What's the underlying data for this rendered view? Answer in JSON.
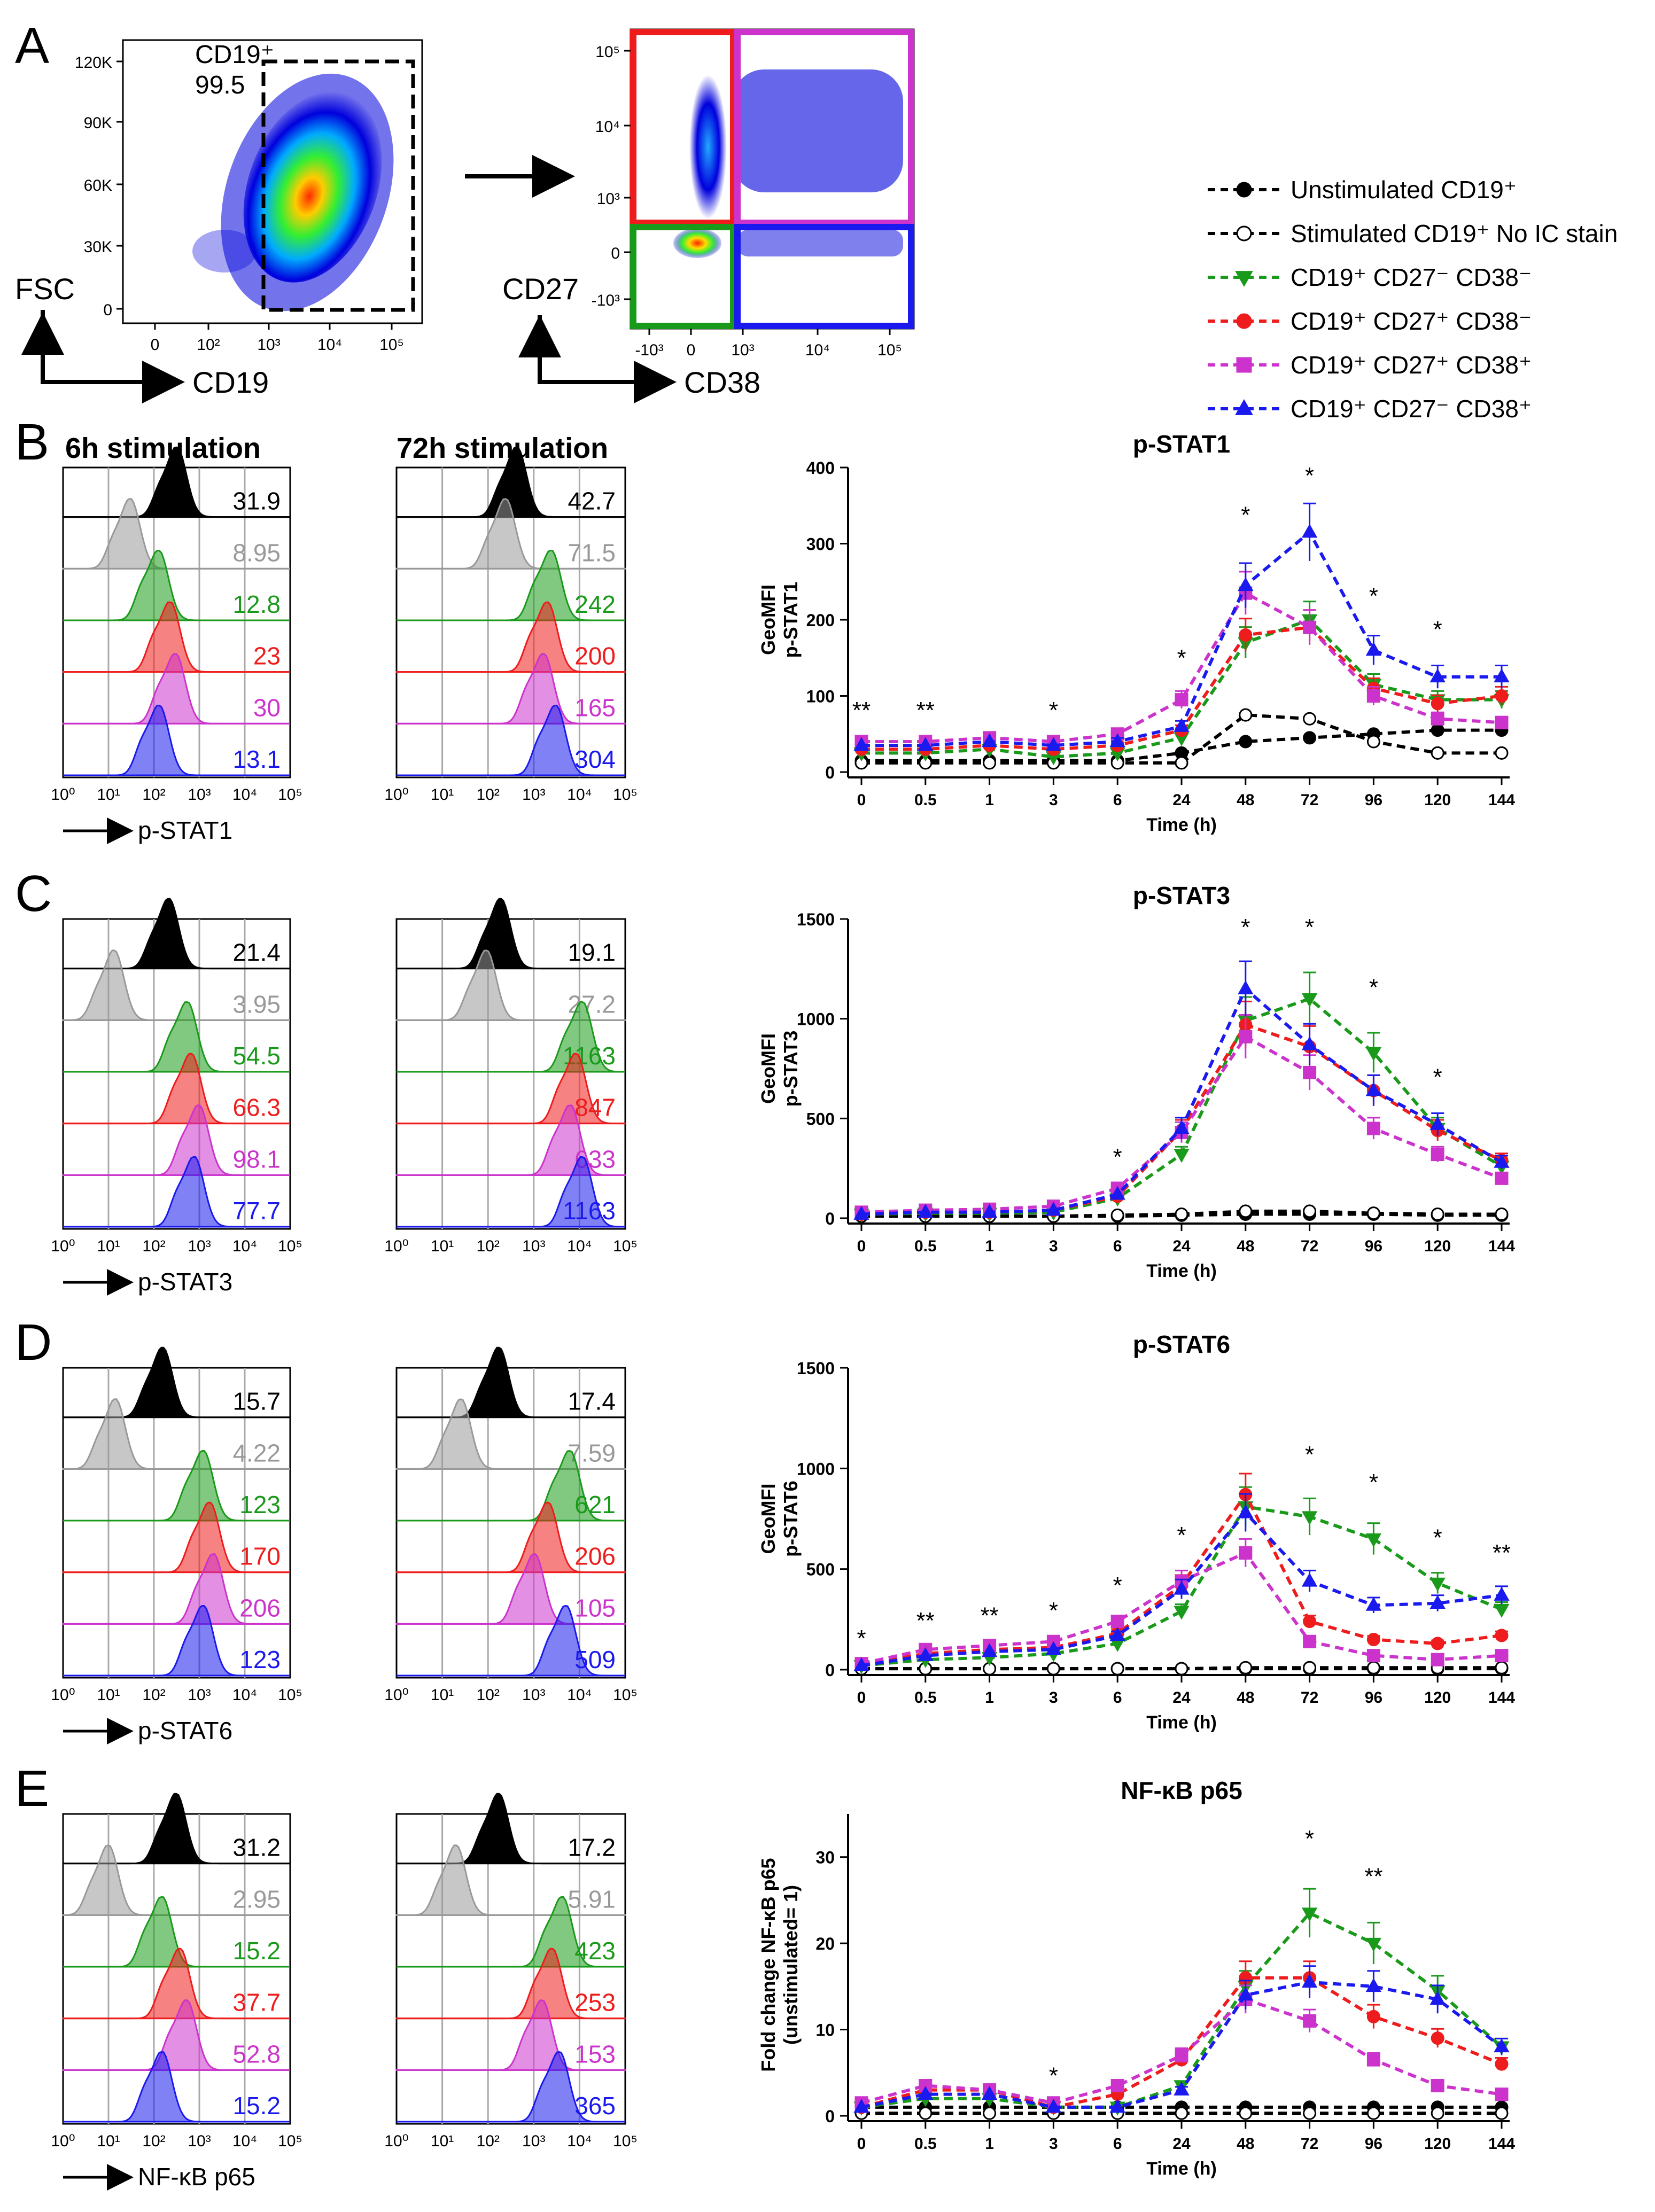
{
  "colors": {
    "black": "#000000",
    "gray": "#999999",
    "green": "#1a9a1a",
    "red": "#ee1c1c",
    "purple": "#cc33cc",
    "blue": "#1a1aee"
  },
  "legend": [
    {
      "label": "Unstimulated CD19⁺",
      "color": "#000000",
      "marker": "circle",
      "filled": true
    },
    {
      "label": "Stimulated CD19⁺ No IC stain",
      "color": "#000000",
      "marker": "circle",
      "filled": false
    },
    {
      "label": "CD19⁺ CD27⁻  CD38⁻",
      "color": "#1a9a1a",
      "marker": "triangle-down",
      "filled": true
    },
    {
      "label": "CD19⁺ CD27⁺ CD38⁻",
      "color": "#ee1c1c",
      "marker": "circle",
      "filled": true
    },
    {
      "label": "CD19⁺ CD27⁺ CD38⁺",
      "color": "#cc33cc",
      "marker": "square",
      "filled": true
    },
    {
      "label": "CD19⁺ CD27⁻  CD38⁺",
      "color": "#1a1aee",
      "marker": "triangle-up",
      "filled": true
    }
  ],
  "panelA": {
    "letter": "A",
    "dot1": {
      "gate_label": "CD19⁺",
      "gate_value": "99.5",
      "y_ticks": [
        "120K",
        "90K",
        "60K",
        "30K",
        "0"
      ],
      "x_ticks": [
        "0",
        "10²",
        "10³",
        "10⁴",
        "10⁵"
      ],
      "y_axis": "FSC",
      "x_axis": "CD19"
    },
    "dot2": {
      "y_ticks": [
        "10⁵",
        "10⁴",
        "10³",
        "0",
        "-10³"
      ],
      "x_ticks": [
        "-10³",
        "0",
        "10³",
        "10⁴",
        "10⁵"
      ],
      "y_axis": "CD27",
      "x_axis": "CD38"
    }
  },
  "histo_x_ticks": [
    "10⁰",
    "10¹",
    "10²",
    "10³",
    "10⁴",
    "10⁵"
  ],
  "histograms": [
    {
      "letter": "B",
      "col1_title": "6h stimulation",
      "col2_title": "72h stimulation",
      "marker": "p-STAT1",
      "values_6h": [
        "31.9",
        "8.95",
        "12.8",
        "23",
        "30",
        "13.1"
      ],
      "values_72h": [
        "42.7",
        "71.5",
        "242",
        "200",
        "165",
        "304"
      ]
    },
    {
      "letter": "C",
      "marker": "p-STAT3",
      "values_6h": [
        "21.4",
        "3.95",
        "54.5",
        "66.3",
        "98.1",
        "77.7"
      ],
      "values_72h": [
        "19.1",
        "27.2",
        "1163",
        "847",
        "633",
        "1163"
      ]
    },
    {
      "letter": "D",
      "marker": "p-STAT6",
      "values_6h": [
        "15.7",
        "4.22",
        "123",
        "170",
        "206",
        "123"
      ],
      "values_72h": [
        "17.4",
        "7.59",
        "621",
        "206",
        "105",
        "509"
      ]
    },
    {
      "letter": "E",
      "marker": "NF-κB p65",
      "values_6h": [
        "31.2",
        "2.95",
        "15.2",
        "37.7",
        "52.8",
        "15.2"
      ],
      "values_72h": [
        "17.2",
        "5.91",
        "423",
        "253",
        "153",
        "365"
      ]
    }
  ],
  "chart_data": [
    {
      "type": "line",
      "title": "p-STAT1",
      "xlabel": "Time (h)",
      "ylabel": "GeoMFI\np-STAT1",
      "categories": [
        "0",
        "0.5",
        "1",
        "3",
        "6",
        "24",
        "48",
        "72",
        "96",
        "120",
        "144"
      ],
      "ylim": [
        0,
        400
      ],
      "yticks": [
        "0",
        "100",
        "200",
        "300",
        "400"
      ],
      "significance": [
        {
          "x": "0",
          "label": "**"
        },
        {
          "x": "0.5",
          "label": "**"
        },
        {
          "x": "3",
          "label": "*"
        },
        {
          "x": "24",
          "label": "*"
        },
        {
          "x": "48",
          "label": "*"
        },
        {
          "x": "72",
          "label": "*"
        },
        {
          "x": "96",
          "label": "*"
        },
        {
          "x": "120",
          "label": "*"
        }
      ],
      "series": [
        {
          "name": "Unstimulated CD19⁺",
          "values": [
            15,
            15,
            15,
            15,
            15,
            25,
            40,
            45,
            50,
            55,
            55
          ]
        },
        {
          "name": "Stimulated CD19⁺ No IC stain",
          "values": [
            12,
            12,
            12,
            12,
            12,
            12,
            75,
            70,
            40,
            25,
            25
          ]
        },
        {
          "name": "CD19⁺ CD27⁻  CD38⁻",
          "values": [
            25,
            25,
            30,
            20,
            25,
            45,
            170,
            200,
            115,
            95,
            95
          ]
        },
        {
          "name": "CD19⁺ CD27⁺ CD38⁻",
          "values": [
            30,
            30,
            35,
            30,
            35,
            55,
            180,
            190,
            110,
            90,
            100
          ]
        },
        {
          "name": "CD19⁺ CD27⁺ CD38⁺",
          "values": [
            40,
            40,
            45,
            40,
            50,
            95,
            235,
            190,
            100,
            70,
            65
          ]
        },
        {
          "name": "CD19⁺ CD27⁻  CD38⁺",
          "values": [
            35,
            35,
            40,
            35,
            40,
            60,
            245,
            315,
            160,
            125,
            125
          ]
        }
      ]
    },
    {
      "type": "line",
      "title": "p-STAT3",
      "xlabel": "Time (h)",
      "ylabel": "GeoMFI\np-STAT3",
      "categories": [
        "0",
        "0.5",
        "1",
        "3",
        "6",
        "24",
        "48",
        "72",
        "96",
        "120",
        "144"
      ],
      "ylim": [
        0,
        1500
      ],
      "yticks": [
        "0",
        "500",
        "1000",
        "1500"
      ],
      "significance": [
        {
          "x": "6",
          "label": "*"
        },
        {
          "x": "48",
          "label": "*"
        },
        {
          "x": "72",
          "label": "*"
        },
        {
          "x": "96",
          "label": "*"
        },
        {
          "x": "120",
          "label": "*"
        }
      ],
      "series": [
        {
          "name": "Unstimulated CD19⁺",
          "values": [
            10,
            10,
            10,
            10,
            10,
            15,
            20,
            20,
            20,
            15,
            15
          ]
        },
        {
          "name": "Stimulated CD19⁺ No IC stain",
          "values": [
            10,
            10,
            10,
            10,
            15,
            20,
            35,
            35,
            25,
            20,
            20
          ]
        },
        {
          "name": "CD19⁺ CD27⁻  CD38⁻",
          "values": [
            20,
            25,
            25,
            30,
            100,
            320,
            990,
            1100,
            830,
            450,
            260
          ]
        },
        {
          "name": "CD19⁺ CD27⁺ CD38⁻",
          "values": [
            20,
            30,
            30,
            40,
            110,
            440,
            970,
            860,
            640,
            440,
            290
          ]
        },
        {
          "name": "CD19⁺ CD27⁺ CD38⁺",
          "values": [
            30,
            40,
            45,
            60,
            150,
            430,
            910,
            730,
            450,
            320,
            200
          ]
        },
        {
          "name": "CD19⁺ CD27⁻  CD38⁺",
          "values": [
            20,
            30,
            30,
            40,
            120,
            450,
            1150,
            870,
            640,
            470,
            280
          ]
        }
      ]
    },
    {
      "type": "line",
      "title": "p-STAT6",
      "xlabel": "Time (h)",
      "ylabel": "GeoMFI\np-STAT6",
      "categories": [
        "0",
        "0.5",
        "1",
        "3",
        "6",
        "24",
        "48",
        "72",
        "96",
        "120",
        "144"
      ],
      "ylim": [
        0,
        1500
      ],
      "yticks": [
        "0",
        "500",
        "1000",
        "1500"
      ],
      "significance": [
        {
          "x": "0",
          "label": "*"
        },
        {
          "x": "0.5",
          "label": "**"
        },
        {
          "x": "1",
          "label": "**"
        },
        {
          "x": "3",
          "label": "*"
        },
        {
          "x": "6",
          "label": "*"
        },
        {
          "x": "24",
          "label": "*"
        },
        {
          "x": "72",
          "label": "*"
        },
        {
          "x": "96",
          "label": "*"
        },
        {
          "x": "120",
          "label": "*"
        },
        {
          "x": "144",
          "label": "**"
        }
      ],
      "series": [
        {
          "name": "Unstimulated CD19⁺",
          "values": [
            5,
            5,
            5,
            5,
            5,
            5,
            5,
            5,
            5,
            5,
            5
          ]
        },
        {
          "name": "Stimulated CD19⁺ No IC stain",
          "values": [
            5,
            5,
            5,
            5,
            5,
            5,
            10,
            10,
            10,
            10,
            10
          ]
        },
        {
          "name": "CD19⁺ CD27⁻  CD38⁻",
          "values": [
            20,
            50,
            60,
            80,
            130,
            290,
            810,
            760,
            650,
            430,
            300
          ]
        },
        {
          "name": "CD19⁺ CD27⁺ CD38⁻",
          "values": [
            25,
            80,
            100,
            110,
            180,
            420,
            870,
            240,
            150,
            130,
            170
          ]
        },
        {
          "name": "CD19⁺ CD27⁺ CD38⁺",
          "values": [
            30,
            100,
            120,
            140,
            240,
            440,
            580,
            140,
            70,
            50,
            70
          ]
        },
        {
          "name": "CD19⁺ CD27⁻  CD38⁺",
          "values": [
            20,
            70,
            90,
            100,
            170,
            400,
            780,
            440,
            320,
            330,
            370
          ]
        }
      ]
    },
    {
      "type": "line",
      "title": "NF-κB p65",
      "xlabel": "Time (h)",
      "ylabel": "Fold change NF-κB p65\n(unstimulated= 1)",
      "categories": [
        "0",
        "0.5",
        "1",
        "3",
        "6",
        "24",
        "48",
        "72",
        "96",
        "120",
        "144"
      ],
      "ylim": [
        0,
        35
      ],
      "yticks": [
        "0",
        "10",
        "20",
        "30"
      ],
      "significance": [
        {
          "x": "3",
          "label": "*"
        },
        {
          "x": "72",
          "label": "*"
        },
        {
          "x": "96",
          "label": "**"
        }
      ],
      "series": [
        {
          "name": "Unstimulated CD19⁺",
          "values": [
            1,
            1,
            1,
            1,
            1,
            1,
            1,
            1,
            1,
            1,
            1
          ]
        },
        {
          "name": "Stimulated CD19⁺ No IC stain",
          "values": [
            0.3,
            0.3,
            0.3,
            0.3,
            0.3,
            0.3,
            0.3,
            0.3,
            0.3,
            0.3,
            0.3
          ]
        },
        {
          "name": "CD19⁺ CD27⁻  CD38⁻",
          "values": [
            1,
            2,
            2,
            1,
            1,
            3.5,
            15,
            23.5,
            20,
            14.5,
            8
          ]
        },
        {
          "name": "CD19⁺ CD27⁺ CD38⁻",
          "values": [
            1,
            3,
            3,
            1,
            2.5,
            6.5,
            16,
            16,
            11.5,
            9,
            6
          ]
        },
        {
          "name": "CD19⁺ CD27⁺ CD38⁺",
          "values": [
            1.5,
            3.5,
            3,
            1.5,
            3.5,
            7,
            13.5,
            11,
            6.5,
            3.5,
            2.5
          ]
        },
        {
          "name": "CD19⁺ CD27⁻  CD38⁺",
          "values": [
            1,
            2.5,
            2.5,
            1,
            1,
            3,
            14,
            15.5,
            15,
            13.5,
            8
          ]
        }
      ]
    }
  ]
}
